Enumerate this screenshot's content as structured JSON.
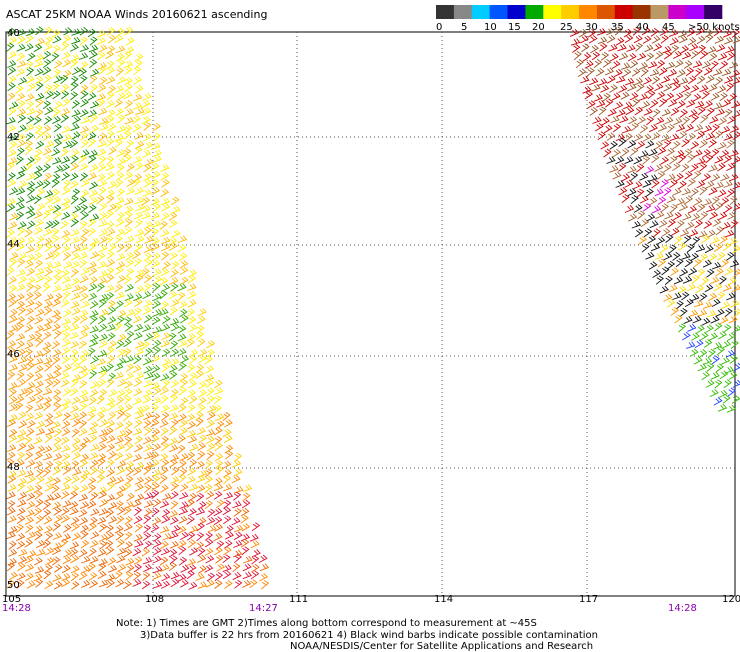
{
  "title": "ASCAT 25KM NOAA Winds 20160621 ascending",
  "colorbar": {
    "labels": [
      "0",
      "5",
      "10",
      "15",
      "20",
      "25",
      "30",
      "35",
      "40",
      "45",
      ">50 knots"
    ],
    "colors": [
      "#333333",
      "#888888",
      "#00ccff",
      "#0055ff",
      "#0000cc",
      "#00aa00",
      "#ffff00",
      "#ffcc00",
      "#ff8800",
      "#dd5500",
      "#cc0000",
      "#993300",
      "#bb9966",
      "#cc00cc",
      "#aa00ff",
      "#330066"
    ]
  },
  "map": {
    "lat_labels": [
      "40",
      "42",
      "44",
      "46",
      "48",
      "50"
    ],
    "lon_labels": [
      "105",
      "108",
      "111",
      "114",
      "117",
      "120"
    ],
    "times": {
      "left_start": "14:28",
      "left_end": "14:27",
      "right": "14:28"
    }
  },
  "notes": {
    "line1": "Note: 1) Times are GMT 2)Times along bottom correspond to measurement at ~45S",
    "line2": "3)Data buffer is 22 hrs from 20160621 4) Black wind barbs indicate possible contamination",
    "line3": "NOAA/NESDIS/Center for Satellite Applications and Research"
  }
}
